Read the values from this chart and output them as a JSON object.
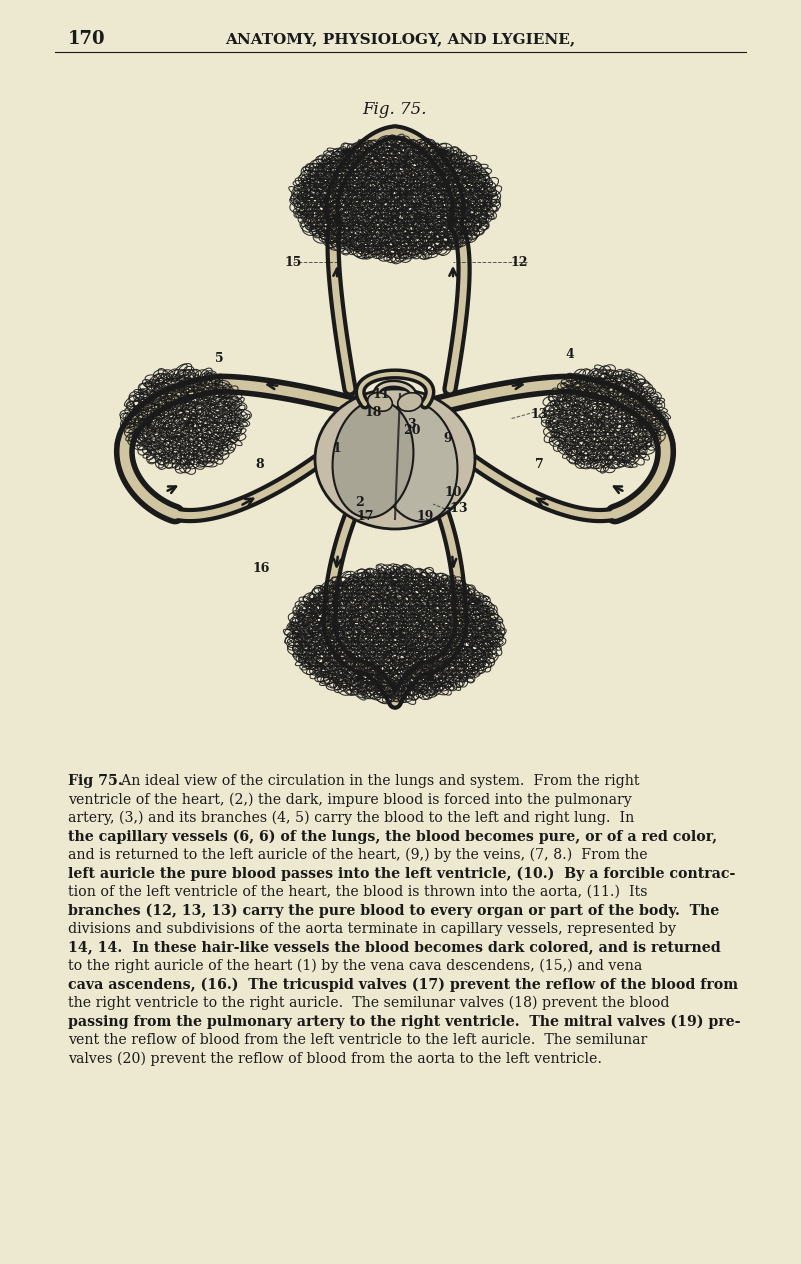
{
  "background_color": "#ede8d0",
  "page_number": "170",
  "header_text": "ANATOMY, PHYSIOLOGY, AND LYGIENE,",
  "fig_title": "Fig. 75.",
  "dark": "#1a1a1a",
  "header_fontsize": 11,
  "page_num_fontsize": 13,
  "fig_title_fontsize": 12,
  "caption_fontsize": 10.2,
  "caption_lines": [
    [
      "bold",
      "Fig 75.",
      "  An ideal view of the circulation in the lungs and system.  From the right"
    ],
    [
      "normal",
      "ventricle of the heart, (2,) the dark, impure blood is forced into the pulmonary"
    ],
    [
      "normal",
      "artery, (3,) and its branches (4, 5) carry the blood to the left and right lung.  In"
    ],
    [
      "bold",
      "the capillary vessels (6, 6) of the lungs, the blood becomes pure, or of a red color,"
    ],
    [
      "normal",
      "and is returned to the left auricle of the heart, (9,) by the veins, (7, 8.)  From the"
    ],
    [
      "bold",
      "left auricle the pure blood passes into the left ventricle, (10.)  By a forcible contrac-"
    ],
    [
      "normal",
      "tion of the left ventricle of the heart, the blood is thrown into the aorta, (11.)  Its"
    ],
    [
      "bold",
      "branches (12, 13, 13) carry the pure blood to every organ or part of the body.  The"
    ],
    [
      "normal",
      "divisions and subdivisions of the aorta terminate in capillary vessels, represented by"
    ],
    [
      "bold",
      "14, 14.  In these hair-like vessels the blood becomes dark colored, and is returned"
    ],
    [
      "normal",
      "to the right auricle of the heart (1) by the vena cava descendens, (15,) and vena"
    ],
    [
      "bold",
      "cava ascendens, (16.)  The tricuspid valves (17) prevent the reflow of the blood from"
    ],
    [
      "normal",
      "the right ventricle to the right auricle.  The semilunar valves (18) prevent the blood"
    ],
    [
      "bold",
      "passing from the pulmonary artery to the right ventricle.  The mitral valves (19) pre-"
    ],
    [
      "normal",
      "vent the reflow of blood from the left ventricle to the left auricle.  The semilunar"
    ],
    [
      "normal",
      "valves (20) prevent the reflow of blood from the aorta to the left ventricle."
    ]
  ]
}
